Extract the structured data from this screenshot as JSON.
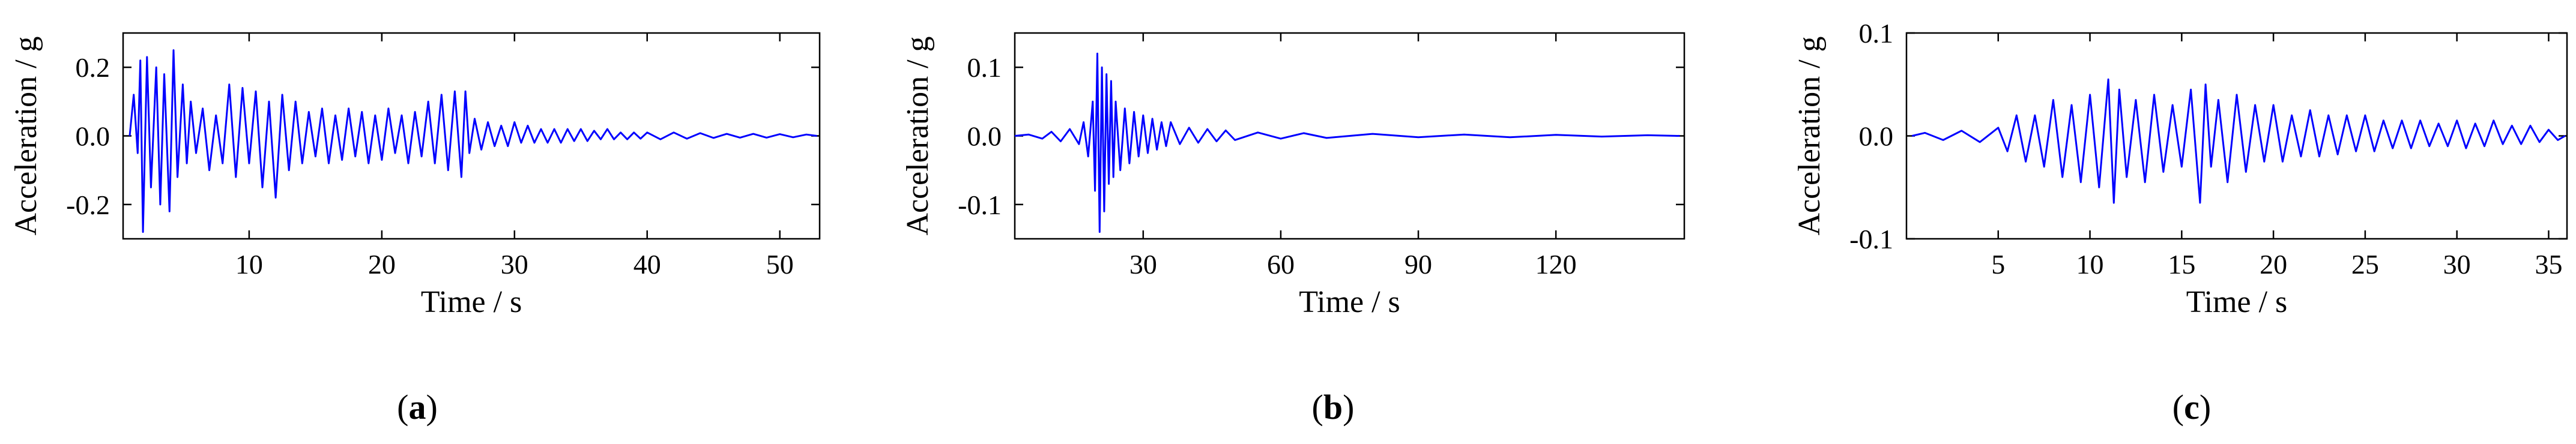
{
  "figure": {
    "trace_color": "#0000ff",
    "axis_color": "#000000"
  },
  "chart_data": [
    {
      "type": "line",
      "panel_label": "a",
      "xlabel": "Time / s",
      "ylabel": "Acceleration / g",
      "xlim": [
        0.5,
        53
      ],
      "ylim": [
        -0.3,
        0.3
      ],
      "xticks": [
        10,
        20,
        30,
        40,
        50
      ],
      "xtick_labels": [
        "10",
        "20",
        "30",
        "40",
        "50"
      ],
      "yticks": [
        -0.2,
        0.0,
        0.2
      ],
      "ytick_labels": [
        "-0.2",
        "0.0",
        "0.2"
      ],
      "grid": false,
      "series": [
        {
          "x": [
            1.0,
            1.3,
            1.6,
            1.8,
            2.0,
            2.3,
            2.6,
            3.0,
            3.3,
            3.6,
            4.0,
            4.3,
            4.6,
            5.0,
            5.3,
            5.6,
            6.0,
            6.5,
            7.0,
            7.5,
            8.0,
            8.5,
            9.0,
            9.5,
            10.0,
            10.5,
            11.0,
            11.5,
            12.0,
            12.5,
            13.0,
            13.5,
            14.0,
            14.5,
            15.0,
            15.5,
            16.0,
            16.5,
            17.0,
            17.5,
            18.0,
            18.5,
            19.0,
            19.5,
            20.0,
            20.5,
            21.0,
            21.5,
            22.0,
            22.5,
            23.0,
            23.5,
            24.0,
            24.5,
            25.0,
            25.5,
            26.0,
            26.3,
            26.6,
            27.0,
            27.5,
            28.0,
            28.5,
            29.0,
            29.5,
            30.0,
            30.5,
            31.0,
            31.5,
            32.0,
            32.5,
            33.0,
            33.5,
            34.0,
            34.5,
            35.0,
            35.5,
            36.0,
            36.5,
            37.0,
            37.5,
            38.0,
            38.5,
            39.0,
            39.5,
            40.0,
            41.0,
            42.0,
            43.0,
            44.0,
            45.0,
            46.0,
            47.0,
            48.0,
            49.0,
            50.0,
            51.0,
            52.0,
            52.8
          ],
          "y": [
            0.0,
            0.12,
            -0.05,
            0.22,
            -0.28,
            0.23,
            -0.15,
            0.2,
            -0.2,
            0.18,
            -0.22,
            0.25,
            -0.12,
            0.15,
            -0.08,
            0.1,
            -0.05,
            0.08,
            -0.1,
            0.06,
            -0.08,
            0.15,
            -0.12,
            0.14,
            -0.08,
            0.13,
            -0.15,
            0.1,
            -0.18,
            0.12,
            -0.1,
            0.1,
            -0.08,
            0.07,
            -0.06,
            0.08,
            -0.08,
            0.06,
            -0.07,
            0.08,
            -0.06,
            0.07,
            -0.08,
            0.06,
            -0.07,
            0.08,
            -0.05,
            0.06,
            -0.08,
            0.07,
            -0.06,
            0.1,
            -0.08,
            0.12,
            -0.1,
            0.13,
            -0.12,
            0.13,
            -0.05,
            0.05,
            -0.04,
            0.04,
            -0.03,
            0.03,
            -0.03,
            0.04,
            -0.02,
            0.03,
            -0.02,
            0.02,
            -0.02,
            0.02,
            -0.02,
            0.02,
            -0.015,
            0.02,
            -0.015,
            0.015,
            -0.01,
            0.02,
            -0.01,
            0.01,
            -0.01,
            0.01,
            -0.008,
            0.01,
            -0.01,
            0.01,
            -0.008,
            0.008,
            -0.006,
            0.006,
            -0.005,
            0.006,
            -0.005,
            0.005,
            -0.004,
            0.004,
            0.0
          ]
        }
      ]
    },
    {
      "type": "line",
      "panel_label": "b",
      "xlabel": "Time / s",
      "ylabel": "Acceleration / g",
      "xlim": [
        2,
        148
      ],
      "ylim": [
        -0.15,
        0.15
      ],
      "xticks": [
        30,
        60,
        90,
        120
      ],
      "xtick_labels": [
        "30",
        "60",
        "90",
        "120"
      ],
      "yticks": [
        -0.1,
        0.0,
        0.1
      ],
      "ytick_labels": [
        "-0.1",
        "0.0",
        "0.1"
      ],
      "grid": false,
      "series": [
        {
          "x": [
            2,
            5,
            8,
            10,
            12,
            14,
            16,
            17,
            18,
            19,
            19.5,
            20,
            20.5,
            21,
            21.5,
            22,
            22.5,
            23,
            23.5,
            24,
            25,
            26,
            27,
            28,
            29,
            30,
            31,
            32,
            33,
            34,
            35,
            36,
            38,
            40,
            42,
            44,
            46,
            48,
            50,
            55,
            60,
            65,
            70,
            80,
            90,
            100,
            110,
            120,
            130,
            140,
            147
          ],
          "y": [
            0.0,
            0.002,
            -0.004,
            0.006,
            -0.008,
            0.01,
            -0.012,
            0.02,
            -0.03,
            0.05,
            -0.08,
            0.12,
            -0.14,
            0.1,
            -0.11,
            0.09,
            -0.07,
            0.08,
            -0.06,
            0.05,
            -0.05,
            0.04,
            -0.04,
            0.035,
            -0.03,
            0.03,
            -0.025,
            0.025,
            -0.02,
            0.02,
            -0.015,
            0.02,
            -0.012,
            0.012,
            -0.01,
            0.01,
            -0.008,
            0.008,
            -0.006,
            0.005,
            -0.004,
            0.004,
            -0.003,
            0.003,
            -0.002,
            0.002,
            -0.002,
            0.0015,
            -0.001,
            0.001,
            0.0
          ]
        }
      ]
    },
    {
      "type": "line",
      "panel_label": "c",
      "xlabel": "Time / s",
      "ylabel": "Acceleration / g",
      "xlim": [
        0,
        36
      ],
      "ylim": [
        -0.1,
        0.1
      ],
      "xticks": [
        5,
        10,
        15,
        20,
        25,
        30,
        35
      ],
      "xtick_labels": [
        "5",
        "10",
        "15",
        "20",
        "25",
        "30",
        "35"
      ],
      "yticks": [
        -0.1,
        0.0,
        0.1
      ],
      "ytick_labels": [
        "-0.1",
        "0.0",
        "0.1"
      ],
      "grid": false,
      "series": [
        {
          "x": [
            0.3,
            1.0,
            2.0,
            3.0,
            4.0,
            5.0,
            5.5,
            6.0,
            6.5,
            7.0,
            7.5,
            8.0,
            8.5,
            9.0,
            9.5,
            10.0,
            10.5,
            11.0,
            11.3,
            11.6,
            12.0,
            12.5,
            13.0,
            13.5,
            14.0,
            14.5,
            15.0,
            15.5,
            16.0,
            16.3,
            16.6,
            17.0,
            17.5,
            18.0,
            18.5,
            19.0,
            19.5,
            20.0,
            20.5,
            21.0,
            21.5,
            22.0,
            22.5,
            23.0,
            23.5,
            24.0,
            24.5,
            25.0,
            25.5,
            26.0,
            26.5,
            27.0,
            27.5,
            28.0,
            28.5,
            29.0,
            29.5,
            30.0,
            30.5,
            31.0,
            31.5,
            32.0,
            32.5,
            33.0,
            33.5,
            34.0,
            34.5,
            35.0,
            35.5,
            35.9
          ],
          "y": [
            0.0,
            0.003,
            -0.004,
            0.005,
            -0.006,
            0.008,
            -0.015,
            0.02,
            -0.025,
            0.02,
            -0.03,
            0.035,
            -0.04,
            0.03,
            -0.045,
            0.04,
            -0.05,
            0.055,
            -0.065,
            0.045,
            -0.04,
            0.035,
            -0.045,
            0.04,
            -0.035,
            0.03,
            -0.03,
            0.045,
            -0.065,
            0.05,
            -0.03,
            0.035,
            -0.045,
            0.04,
            -0.035,
            0.03,
            -0.025,
            0.03,
            -0.025,
            0.02,
            -0.02,
            0.025,
            -0.02,
            0.02,
            -0.018,
            0.02,
            -0.015,
            0.02,
            -0.015,
            0.015,
            -0.012,
            0.015,
            -0.012,
            0.015,
            -0.01,
            0.012,
            -0.01,
            0.015,
            -0.012,
            0.012,
            -0.01,
            0.015,
            -0.008,
            0.01,
            -0.008,
            0.01,
            -0.006,
            0.006,
            -0.004,
            0.0
          ]
        }
      ]
    }
  ]
}
